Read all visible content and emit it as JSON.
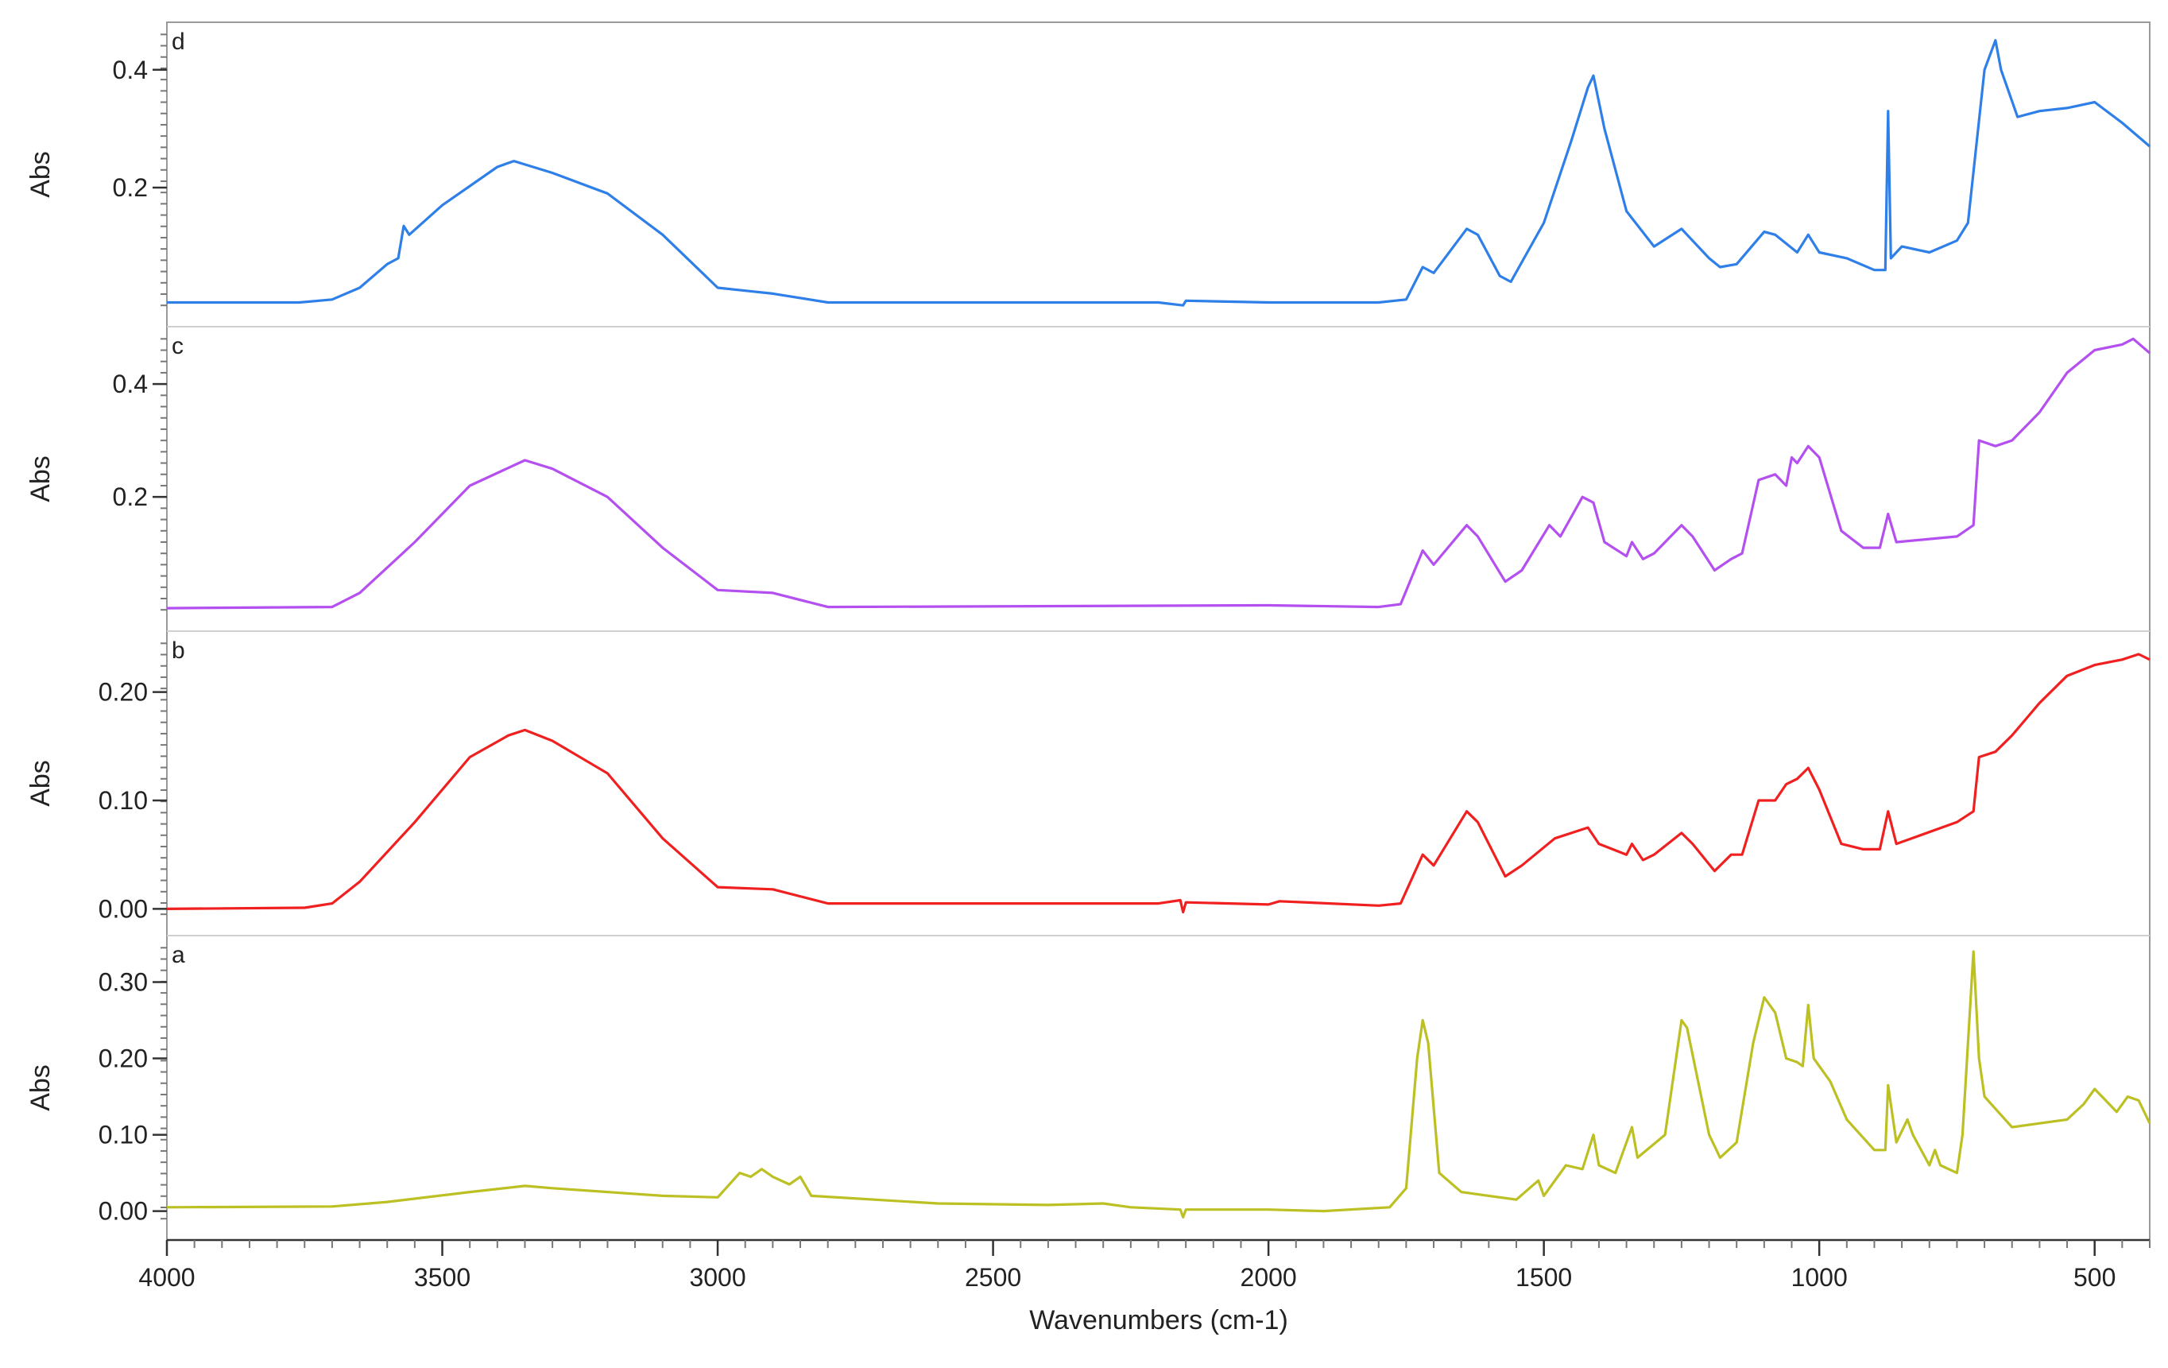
{
  "chart_data": {
    "type": "line",
    "xlabel": "Wavenumbers (cm-1)",
    "xlim": [
      4000,
      400
    ],
    "x_reversed": true,
    "x_ticks": [
      4000,
      3500,
      3000,
      2500,
      2000,
      1500,
      1000,
      500
    ],
    "grid": false,
    "legend": "none",
    "panels": [
      {
        "tag": "d",
        "ylabel": "Abs",
        "ylim": [
          0.0,
          0.46
        ],
        "y_ticks": [
          0.2,
          0.4
        ],
        "y_tick_labels": [
          "0.2",
          "0.4"
        ],
        "color": "#2f7fe8",
        "points": [
          [
            4000,
            0.005
          ],
          [
            3760,
            0.005
          ],
          [
            3700,
            0.01
          ],
          [
            3650,
            0.03
          ],
          [
            3600,
            0.07
          ],
          [
            3580,
            0.08
          ],
          [
            3570,
            0.135
          ],
          [
            3560,
            0.12
          ],
          [
            3500,
            0.17
          ],
          [
            3400,
            0.235
          ],
          [
            3370,
            0.245
          ],
          [
            3300,
            0.225
          ],
          [
            3200,
            0.19
          ],
          [
            3100,
            0.12
          ],
          [
            3000,
            0.03
          ],
          [
            2950,
            0.025
          ],
          [
            2900,
            0.02
          ],
          [
            2800,
            0.005
          ],
          [
            2500,
            0.005
          ],
          [
            2200,
            0.005
          ],
          [
            2155,
            0.0
          ],
          [
            2150,
            0.008
          ],
          [
            2000,
            0.005
          ],
          [
            1800,
            0.005
          ],
          [
            1750,
            0.01
          ],
          [
            1720,
            0.065
          ],
          [
            1700,
            0.055
          ],
          [
            1640,
            0.13
          ],
          [
            1620,
            0.12
          ],
          [
            1580,
            0.05
          ],
          [
            1560,
            0.04
          ],
          [
            1500,
            0.14
          ],
          [
            1450,
            0.28
          ],
          [
            1420,
            0.37
          ],
          [
            1410,
            0.39
          ],
          [
            1390,
            0.3
          ],
          [
            1350,
            0.16
          ],
          [
            1300,
            0.1
          ],
          [
            1250,
            0.13
          ],
          [
            1240,
            0.12
          ],
          [
            1200,
            0.08
          ],
          [
            1180,
            0.065
          ],
          [
            1150,
            0.07
          ],
          [
            1100,
            0.125
          ],
          [
            1080,
            0.12
          ],
          [
            1040,
            0.09
          ],
          [
            1020,
            0.12
          ],
          [
            1000,
            0.09
          ],
          [
            950,
            0.08
          ],
          [
            900,
            0.06
          ],
          [
            880,
            0.06
          ],
          [
            875,
            0.33
          ],
          [
            870,
            0.08
          ],
          [
            850,
            0.1
          ],
          [
            800,
            0.09
          ],
          [
            750,
            0.11
          ],
          [
            730,
            0.14
          ],
          [
            700,
            0.4
          ],
          [
            680,
            0.45
          ],
          [
            670,
            0.4
          ],
          [
            640,
            0.32
          ],
          [
            600,
            0.33
          ],
          [
            550,
            0.335
          ],
          [
            500,
            0.345
          ],
          [
            450,
            0.31
          ],
          [
            400,
            0.27
          ]
        ]
      },
      {
        "tag": "c",
        "ylabel": "Abs",
        "ylim": [
          0.0,
          0.48
        ],
        "y_ticks": [
          0.2,
          0.4
        ],
        "y_tick_labels": [
          "0.2",
          "0.4"
        ],
        "color": "#b44ff0",
        "points": [
          [
            4000,
            0.003
          ],
          [
            3700,
            0.005
          ],
          [
            3650,
            0.03
          ],
          [
            3550,
            0.12
          ],
          [
            3450,
            0.22
          ],
          [
            3350,
            0.265
          ],
          [
            3300,
            0.25
          ],
          [
            3200,
            0.2
          ],
          [
            3100,
            0.11
          ],
          [
            3000,
            0.035
          ],
          [
            2900,
            0.03
          ],
          [
            2800,
            0.005
          ],
          [
            2000,
            0.008
          ],
          [
            1800,
            0.005
          ],
          [
            1760,
            0.01
          ],
          [
            1720,
            0.105
          ],
          [
            1700,
            0.08
          ],
          [
            1640,
            0.15
          ],
          [
            1620,
            0.13
          ],
          [
            1570,
            0.05
          ],
          [
            1540,
            0.07
          ],
          [
            1490,
            0.15
          ],
          [
            1470,
            0.13
          ],
          [
            1430,
            0.2
          ],
          [
            1410,
            0.19
          ],
          [
            1390,
            0.12
          ],
          [
            1350,
            0.095
          ],
          [
            1340,
            0.12
          ],
          [
            1320,
            0.09
          ],
          [
            1300,
            0.1
          ],
          [
            1250,
            0.15
          ],
          [
            1230,
            0.13
          ],
          [
            1190,
            0.07
          ],
          [
            1160,
            0.09
          ],
          [
            1140,
            0.1
          ],
          [
            1110,
            0.23
          ],
          [
            1080,
            0.24
          ],
          [
            1060,
            0.22
          ],
          [
            1050,
            0.27
          ],
          [
            1040,
            0.26
          ],
          [
            1020,
            0.29
          ],
          [
            1000,
            0.27
          ],
          [
            960,
            0.14
          ],
          [
            920,
            0.11
          ],
          [
            890,
            0.11
          ],
          [
            875,
            0.17
          ],
          [
            860,
            0.12
          ],
          [
            750,
            0.13
          ],
          [
            720,
            0.15
          ],
          [
            710,
            0.3
          ],
          [
            680,
            0.29
          ],
          [
            650,
            0.3
          ],
          [
            600,
            0.35
          ],
          [
            550,
            0.42
          ],
          [
            500,
            0.46
          ],
          [
            450,
            0.47
          ],
          [
            430,
            0.48
          ],
          [
            400,
            0.455
          ]
        ]
      },
      {
        "tag": "b",
        "ylabel": "Abs",
        "ylim": [
          -0.005,
          0.245
        ],
        "y_ticks": [
          0.0,
          0.1,
          0.2
        ],
        "y_tick_labels": [
          "0.00",
          "0.10",
          "0.20"
        ],
        "color": "#f02020",
        "points": [
          [
            4000,
            0.0
          ],
          [
            3750,
            0.001
          ],
          [
            3700,
            0.005
          ],
          [
            3650,
            0.025
          ],
          [
            3550,
            0.08
          ],
          [
            3450,
            0.14
          ],
          [
            3380,
            0.16
          ],
          [
            3350,
            0.165
          ],
          [
            3300,
            0.155
          ],
          [
            3200,
            0.125
          ],
          [
            3100,
            0.065
          ],
          [
            3000,
            0.02
          ],
          [
            2900,
            0.018
          ],
          [
            2800,
            0.005
          ],
          [
            2200,
            0.005
          ],
          [
            2160,
            0.008
          ],
          [
            2155,
            -0.003
          ],
          [
            2150,
            0.006
          ],
          [
            2000,
            0.004
          ],
          [
            1980,
            0.007
          ],
          [
            1800,
            0.003
          ],
          [
            1760,
            0.005
          ],
          [
            1720,
            0.05
          ],
          [
            1700,
            0.04
          ],
          [
            1640,
            0.09
          ],
          [
            1620,
            0.08
          ],
          [
            1570,
            0.03
          ],
          [
            1540,
            0.04
          ],
          [
            1480,
            0.065
          ],
          [
            1420,
            0.075
          ],
          [
            1400,
            0.06
          ],
          [
            1350,
            0.05
          ],
          [
            1340,
            0.06
          ],
          [
            1320,
            0.045
          ],
          [
            1300,
            0.05
          ],
          [
            1250,
            0.07
          ],
          [
            1230,
            0.06
          ],
          [
            1190,
            0.035
          ],
          [
            1160,
            0.05
          ],
          [
            1140,
            0.05
          ],
          [
            1110,
            0.1
          ],
          [
            1080,
            0.1
          ],
          [
            1060,
            0.115
          ],
          [
            1040,
            0.12
          ],
          [
            1020,
            0.13
          ],
          [
            1000,
            0.11
          ],
          [
            960,
            0.06
          ],
          [
            920,
            0.055
          ],
          [
            890,
            0.055
          ],
          [
            875,
            0.09
          ],
          [
            860,
            0.06
          ],
          [
            750,
            0.08
          ],
          [
            720,
            0.09
          ],
          [
            710,
            0.14
          ],
          [
            680,
            0.145
          ],
          [
            650,
            0.16
          ],
          [
            600,
            0.19
          ],
          [
            550,
            0.215
          ],
          [
            500,
            0.225
          ],
          [
            450,
            0.23
          ],
          [
            420,
            0.235
          ],
          [
            400,
            0.23
          ]
        ]
      },
      {
        "tag": "a",
        "ylabel": "Abs",
        "ylim": [
          -0.01,
          0.345
        ],
        "y_ticks": [
          0.0,
          0.1,
          0.2,
          0.3
        ],
        "y_tick_labels": [
          "0.00",
          "0.10",
          "0.20",
          "0.30"
        ],
        "color": "#bcc023",
        "points": [
          [
            4000,
            0.005
          ],
          [
            3700,
            0.006
          ],
          [
            3600,
            0.012
          ],
          [
            3450,
            0.025
          ],
          [
            3350,
            0.033
          ],
          [
            3300,
            0.03
          ],
          [
            3100,
            0.02
          ],
          [
            3000,
            0.018
          ],
          [
            2960,
            0.05
          ],
          [
            2940,
            0.045
          ],
          [
            2920,
            0.055
          ],
          [
            2900,
            0.045
          ],
          [
            2870,
            0.035
          ],
          [
            2850,
            0.045
          ],
          [
            2830,
            0.02
          ],
          [
            2600,
            0.01
          ],
          [
            2400,
            0.008
          ],
          [
            2300,
            0.01
          ],
          [
            2250,
            0.005
          ],
          [
            2160,
            0.002
          ],
          [
            2155,
            -0.008
          ],
          [
            2150,
            0.002
          ],
          [
            2000,
            0.002
          ],
          [
            1900,
            0.0
          ],
          [
            1780,
            0.005
          ],
          [
            1750,
            0.03
          ],
          [
            1730,
            0.2
          ],
          [
            1720,
            0.25
          ],
          [
            1710,
            0.22
          ],
          [
            1690,
            0.05
          ],
          [
            1650,
            0.025
          ],
          [
            1600,
            0.02
          ],
          [
            1550,
            0.015
          ],
          [
            1510,
            0.04
          ],
          [
            1500,
            0.02
          ],
          [
            1460,
            0.06
          ],
          [
            1430,
            0.055
          ],
          [
            1410,
            0.1
          ],
          [
            1400,
            0.06
          ],
          [
            1370,
            0.05
          ],
          [
            1340,
            0.11
          ],
          [
            1330,
            0.07
          ],
          [
            1280,
            0.1
          ],
          [
            1250,
            0.25
          ],
          [
            1240,
            0.24
          ],
          [
            1200,
            0.1
          ],
          [
            1180,
            0.07
          ],
          [
            1150,
            0.09
          ],
          [
            1120,
            0.22
          ],
          [
            1100,
            0.28
          ],
          [
            1080,
            0.26
          ],
          [
            1060,
            0.2
          ],
          [
            1040,
            0.195
          ],
          [
            1030,
            0.19
          ],
          [
            1020,
            0.27
          ],
          [
            1010,
            0.2
          ],
          [
            980,
            0.17
          ],
          [
            950,
            0.12
          ],
          [
            900,
            0.08
          ],
          [
            880,
            0.08
          ],
          [
            875,
            0.165
          ],
          [
            860,
            0.09
          ],
          [
            840,
            0.12
          ],
          [
            830,
            0.1
          ],
          [
            800,
            0.06
          ],
          [
            790,
            0.08
          ],
          [
            780,
            0.06
          ],
          [
            750,
            0.05
          ],
          [
            740,
            0.1
          ],
          [
            720,
            0.34
          ],
          [
            710,
            0.2
          ],
          [
            700,
            0.15
          ],
          [
            650,
            0.11
          ],
          [
            600,
            0.115
          ],
          [
            550,
            0.12
          ],
          [
            520,
            0.14
          ],
          [
            500,
            0.16
          ],
          [
            480,
            0.145
          ],
          [
            460,
            0.13
          ],
          [
            440,
            0.15
          ],
          [
            420,
            0.145
          ],
          [
            400,
            0.115
          ]
        ]
      }
    ]
  }
}
